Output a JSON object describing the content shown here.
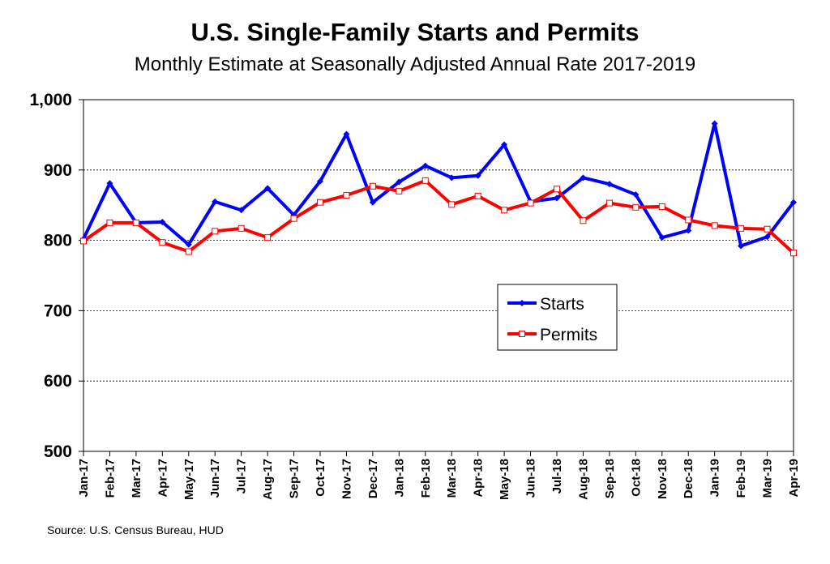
{
  "title": "U.S. Single-Family Starts and Permits",
  "subtitle": "Monthly Estimate at Seasonally Adjusted Annual Rate 2017-2019",
  "source": "Source:  U.S. Census Bureau, HUD",
  "chart_data": {
    "type": "line",
    "title": "U.S. Single-Family Starts and Permits",
    "subtitle": "Monthly Estimate at Seasonally Adjusted Annual Rate 2017-2019",
    "categories": [
      "Jan-17",
      "Feb-17",
      "Mar-17",
      "Apr-17",
      "May-17",
      "Jun-17",
      "Jul-17",
      "Aug-17",
      "Sep-17",
      "Oct-17",
      "Nov-17",
      "Dec-17",
      "Jan-18",
      "Feb-18",
      "Mar-18",
      "Apr-18",
      "May-18",
      "Jun-18",
      "Jul-18",
      "Aug-18",
      "Sep-18",
      "Oct-18",
      "Nov-18",
      "Dec-18",
      "Jan-19",
      "Feb-19",
      "Mar-19",
      "Apr-19"
    ],
    "ylim": [
      500,
      1000
    ],
    "yticks": [
      500,
      600,
      700,
      800,
      900,
      1000
    ],
    "ytick_labels": [
      "500",
      "600",
      "700",
      "800",
      "900",
      "1,000"
    ],
    "grid": true,
    "legend_position": "center-right",
    "series": [
      {
        "name": "Starts",
        "color": "#0000ff",
        "marker": "diamond",
        "values": [
          802,
          881,
          825,
          826,
          794,
          855,
          843,
          874,
          836,
          884,
          951,
          854,
          883,
          906,
          889,
          892,
          936,
          855,
          860,
          889,
          880,
          865,
          804,
          814,
          966,
          792,
          805,
          854
        ]
      },
      {
        "name": "Permits",
        "color": "#ff0000",
        "marker": "square",
        "values": [
          799,
          825,
          825,
          797,
          784,
          813,
          817,
          804,
          831,
          854,
          864,
          877,
          870,
          885,
          851,
          863,
          843,
          853,
          873,
          828,
          853,
          847,
          848,
          829,
          821,
          817,
          816,
          782
        ]
      }
    ]
  }
}
